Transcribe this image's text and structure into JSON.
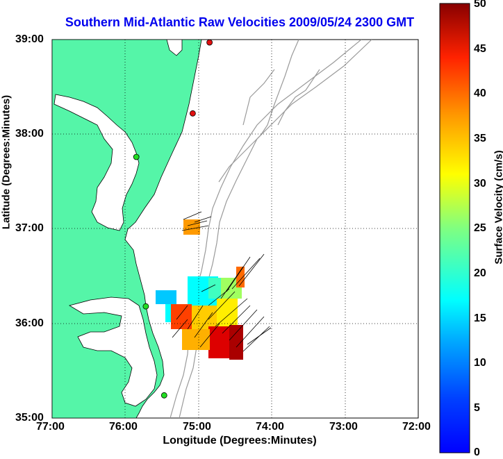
{
  "title": "Southern Mid-Atlantic Raw Velocities 2009/05/24 2300 GMT",
  "axes": {
    "xlabel": "Longitude (Degrees:Minutes)",
    "ylabel": "Latitude (Degrees:Minutes)",
    "xticks": [
      "77:00",
      "76:00",
      "75:00",
      "74:00",
      "73:00",
      "72:00"
    ],
    "yticks": [
      "39:00",
      "38:00",
      "37:00",
      "36:00",
      "35:00"
    ],
    "xlim": [
      -77,
      -72
    ],
    "ylim": [
      35,
      39
    ],
    "grid": "dotted"
  },
  "colorbar": {
    "label": "Surface Velocity (cm/s)",
    "ticks": [
      "0",
      "5",
      "10",
      "15",
      "20",
      "25",
      "30",
      "35",
      "40",
      "45",
      "50"
    ],
    "range": [
      0,
      50
    ],
    "colormap": "jet"
  },
  "colors": {
    "land": "#55f5a8",
    "title": "#0000ee",
    "bathymetry": "#9a9a9a",
    "station_red": "#e01010",
    "station_green": "#22dd22"
  },
  "stations": [
    {
      "lon": -74.85,
      "lat": 38.97,
      "color": "red"
    },
    {
      "lon": -75.08,
      "lat": 38.22,
      "color": "red"
    },
    {
      "lon": -75.85,
      "lat": 37.76,
      "color": "green"
    },
    {
      "lon": -75.72,
      "lat": 36.18,
      "color": "green"
    },
    {
      "lon": -75.47,
      "lat": 35.24,
      "color": "green"
    }
  ]
}
